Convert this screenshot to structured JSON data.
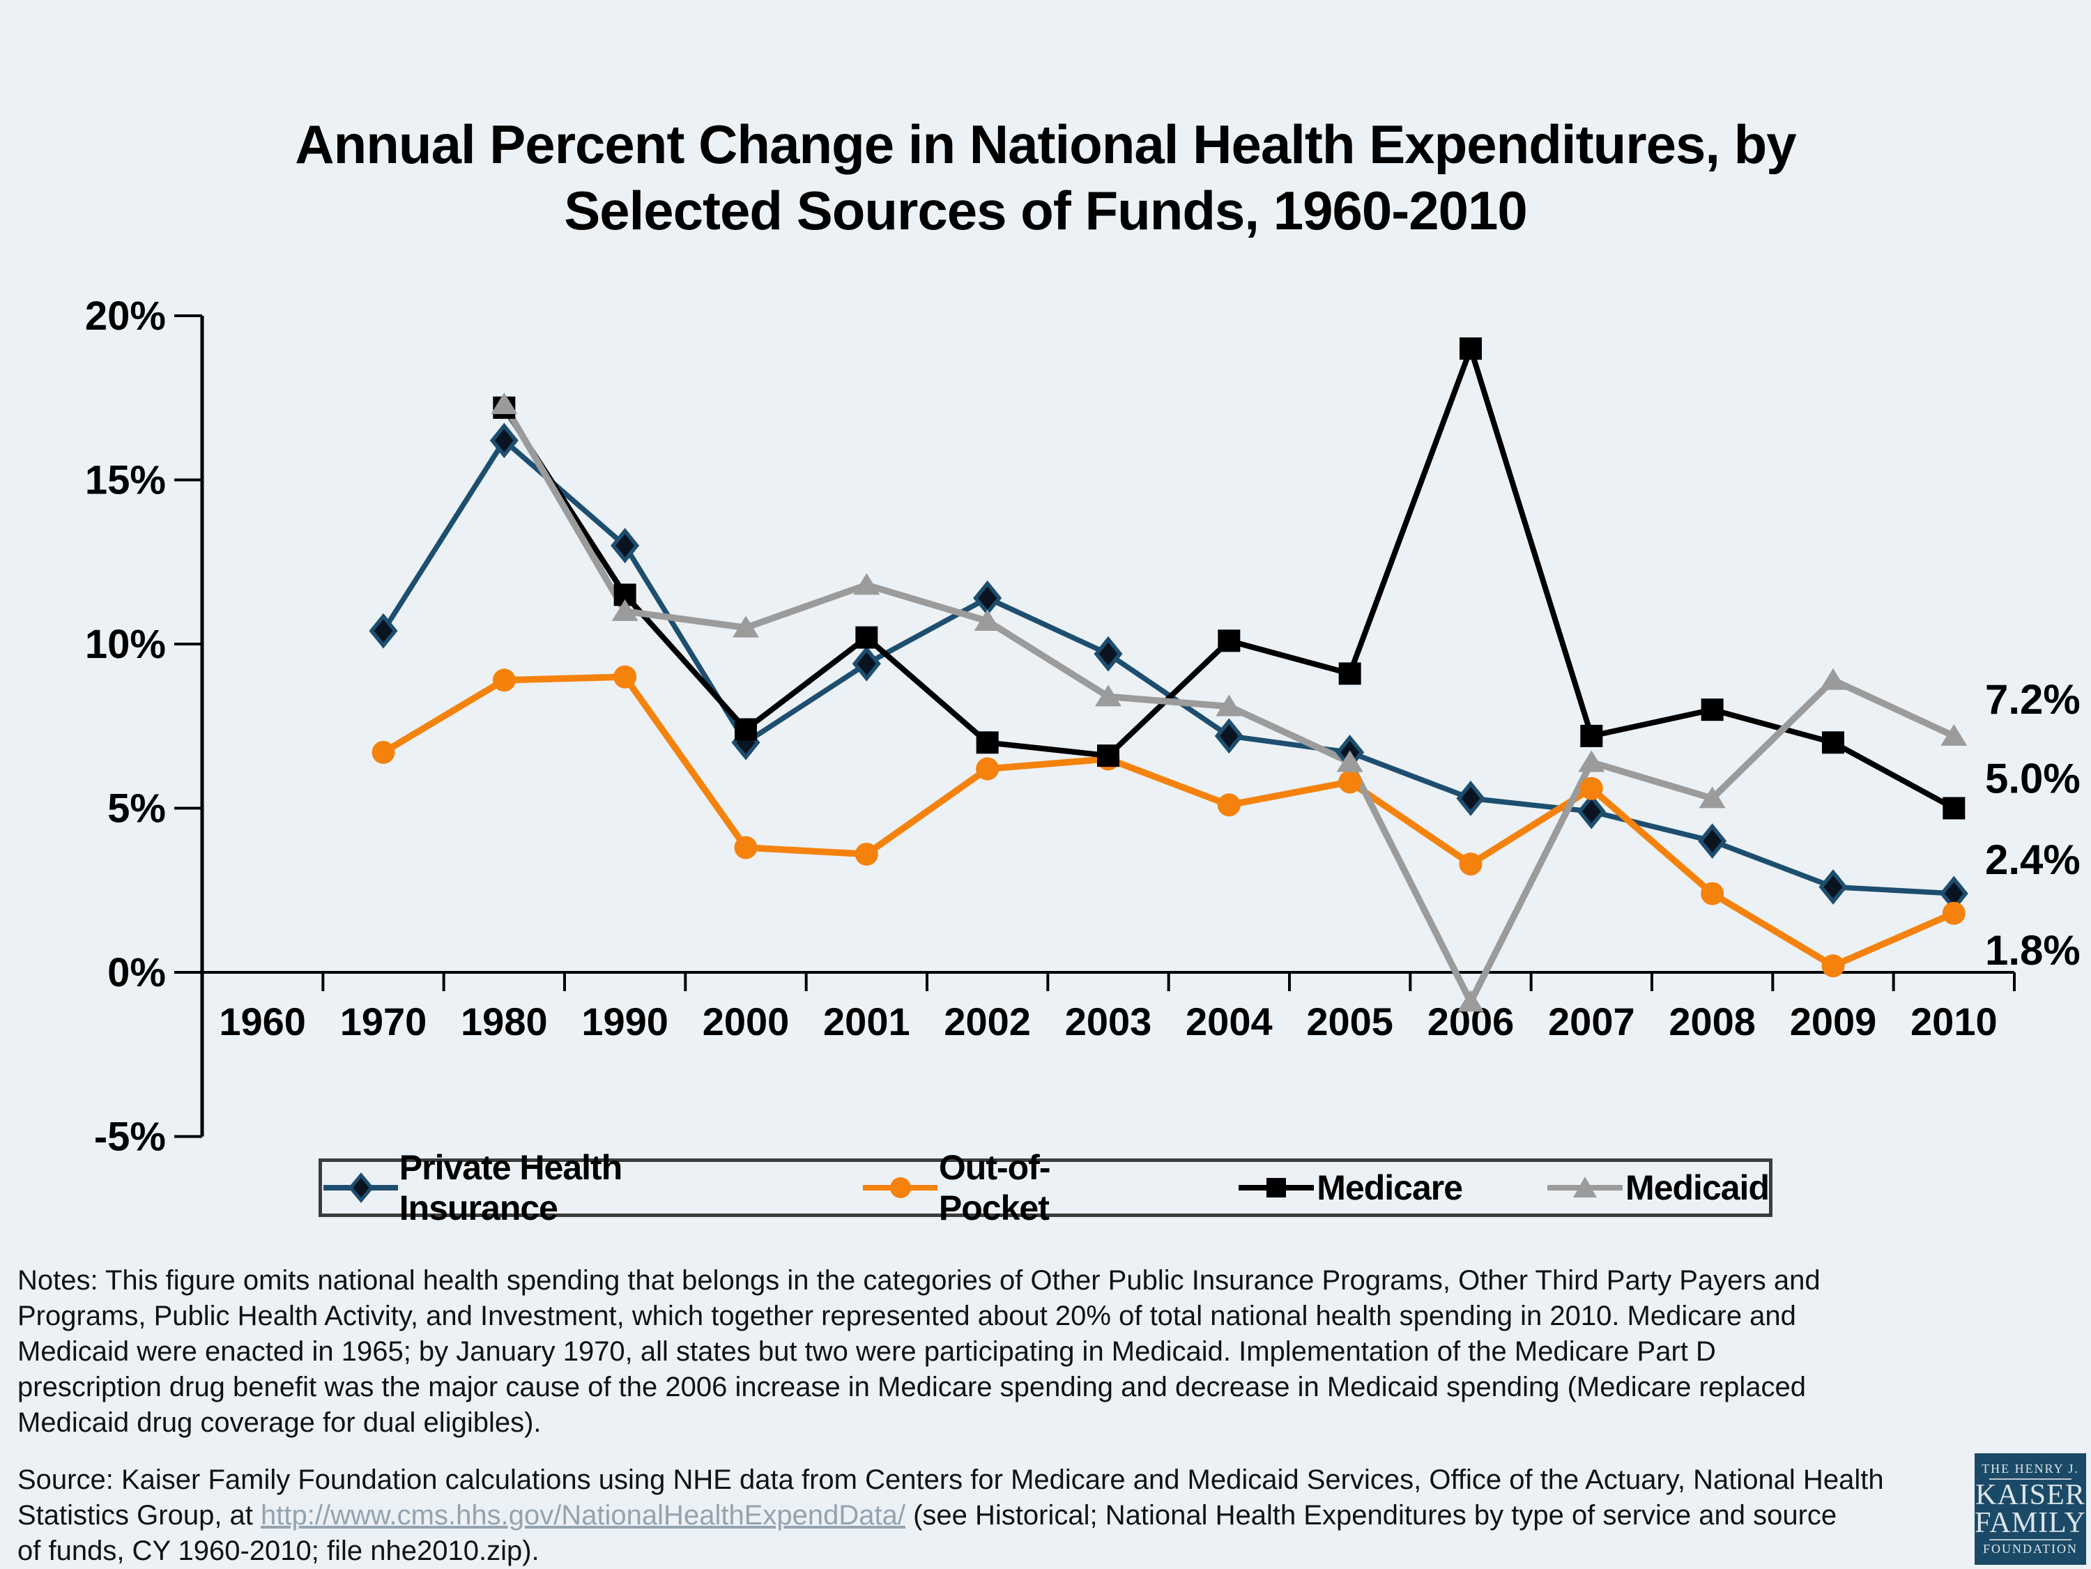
{
  "title": {
    "line1": "Annual Percent Change in National Health Expenditures, by",
    "line2": "Selected Sources of Funds, 1960-2010"
  },
  "chart_data": {
    "type": "line",
    "categories": [
      "1960",
      "1970",
      "1980",
      "1990",
      "2000",
      "2001",
      "2002",
      "2003",
      "2004",
      "2005",
      "2006",
      "2007",
      "2008",
      "2009",
      "2010"
    ],
    "series": [
      {
        "name": "Private Health Insurance",
        "marker": "diamond",
        "line_color": "#1d4e70",
        "marker_fill": "#0a1420",
        "values": [
          null,
          10.4,
          16.2,
          13.0,
          7.0,
          9.4,
          11.4,
          9.7,
          7.2,
          6.7,
          5.3,
          4.9,
          4.0,
          2.6,
          2.4
        ]
      },
      {
        "name": "Out-of-Pocket",
        "marker": "circle",
        "line_color": "#f5820d",
        "marker_fill": "#f5820d",
        "values": [
          null,
          6.7,
          8.9,
          9.0,
          3.8,
          3.6,
          6.2,
          6.5,
          5.1,
          5.8,
          3.3,
          5.6,
          2.4,
          0.2,
          1.8
        ]
      },
      {
        "name": "Medicare",
        "marker": "square",
        "line_color": "#000000",
        "marker_fill": "#000000",
        "values": [
          null,
          null,
          17.2,
          11.5,
          7.4,
          10.2,
          7.0,
          6.6,
          10.1,
          9.1,
          19.0,
          7.2,
          8.0,
          7.0,
          5.0
        ]
      },
      {
        "name": "Medicaid",
        "marker": "triangle",
        "line_color": "#9b9b9b",
        "marker_fill": "#9b9b9b",
        "values": [
          null,
          null,
          17.3,
          11.0,
          10.5,
          11.8,
          10.7,
          8.4,
          8.1,
          6.4,
          -0.9,
          6.4,
          5.3,
          8.9,
          7.2
        ]
      }
    ],
    "yticks": [
      20,
      15,
      10,
      5,
      0,
      -5
    ],
    "ytick_labels": [
      "20%",
      "15%",
      "10%",
      "5%",
      "0%",
      "-5%"
    ],
    "ylim": [
      -5,
      20
    ],
    "grid": false,
    "legend_position": "bottom",
    "end_labels": [
      {
        "text": "7.2%",
        "series": "Medicaid"
      },
      {
        "text": "5.0%",
        "series": "Medicare"
      },
      {
        "text": "2.4%",
        "series": "Private Health Insurance"
      },
      {
        "text": "1.8%",
        "series": "Out-of-Pocket"
      }
    ]
  },
  "notes": "Notes: This figure omits national health spending that belongs in the categories of Other Public Insurance Programs, Other Third Party Payers and\nPrograms, Public Health Activity, and Investment, which together represented about 20% of total national health spending in 2010. Medicare and\nMedicaid were enacted in 1965; by January 1970, all states but two were participating in Medicaid. Implementation of the Medicare Part D\nprescription drug benefit was the major cause of the 2006 increase in Medicare spending and decrease in Medicaid spending (Medicare replaced\nMedicaid drug coverage for dual eligibles).",
  "source": {
    "line1": "Source: Kaiser Family Foundation calculations using NHE data from Centers for Medicare and Medicaid Services, Office of the Actuary, National Health",
    "line2_pre": "Statistics Group, at ",
    "link": "http://www.cms.hhs.gov/NationalHealthExpendData/",
    "line2_post": " (see Historical; National Health Expenditures by type of service and source",
    "line3": "of funds, CY 1960-2010; file nhe2010.zip)."
  },
  "logo": {
    "top": "THE HENRY J.",
    "name1": "KAISER",
    "name2": "FAMILY",
    "bottom": "FOUNDATION"
  },
  "colors": {
    "background": "#ecf1f5",
    "axis": "#000000",
    "private": "#1d4e70",
    "out_of_pocket": "#f5820d",
    "medicare": "#000000",
    "medicaid": "#9b9b9b",
    "link": "#94a3af",
    "logo_bg": "#1a4a67"
  }
}
